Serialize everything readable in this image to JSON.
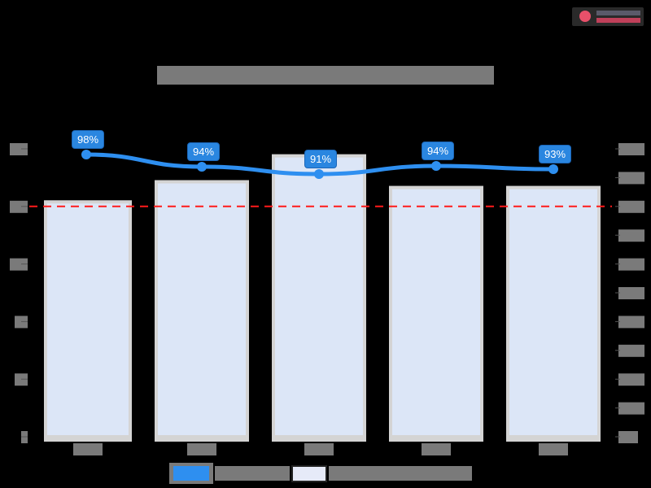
{
  "logo": {
    "icon": "circle-logo-icon",
    "text_line1": "",
    "text_line2": "",
    "accent": "#e8506a"
  },
  "chart_data": {
    "type": "bar+line",
    "title": "",
    "categories": [
      "",
      "",
      "",
      "",
      ""
    ],
    "xlabel": "",
    "ylabel_left": "",
    "ylabel_right": "",
    "left_axis": {
      "tick_count": 6,
      "tick_labels": [
        "",
        "",
        "",
        "",
        "",
        ""
      ]
    },
    "right_axis": {
      "tick_count": 11,
      "tick_labels": [
        "",
        "",
        "",
        "",
        "",
        "",
        "",
        "",
        "",
        "",
        ""
      ]
    },
    "series": [
      {
        "name": "",
        "type": "line",
        "axis": "right",
        "color": "#2e8ff0",
        "values": [
          98,
          94,
          91,
          94,
          93
        ],
        "labels": [
          "98%",
          "94%",
          "91%",
          "94%",
          "93%"
        ]
      },
      {
        "name": "",
        "type": "bar",
        "axis": "left",
        "color": "#dce6f7",
        "relative_heights": [
          0.81,
          0.88,
          0.97,
          0.86,
          0.86
        ]
      }
    ],
    "reference_line": {
      "style": "dashed",
      "color": "#ff1a1a",
      "relative_height": 0.8
    },
    "legend": {
      "position": "bottom",
      "entries": [
        {
          "label": "",
          "swatch": "#2e8ff0"
        },
        {
          "label": "",
          "swatch": "#e6eaf8"
        }
      ]
    },
    "grid": false
  }
}
